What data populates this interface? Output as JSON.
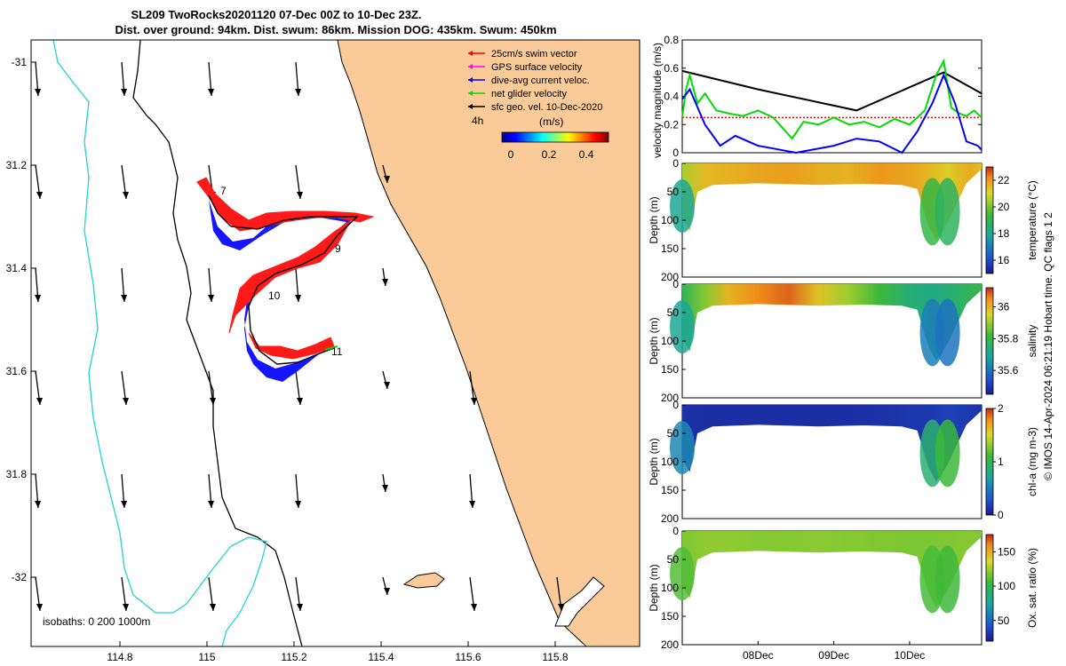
{
  "header": {
    "line1": "SL209 TwoRocks20201120 07-Dec 00Z to 10-Dec 23Z.",
    "line2": "Dist. over ground: 94km. Dist. swum: 86km. Mission DOG: 435km. Swum: 450km"
  },
  "map": {
    "x_ticks": [
      "114.8",
      "115",
      "115.2",
      "115.4",
      "115.6",
      "115.8"
    ],
    "y_ticks": [
      "-31",
      "31.2",
      "31.4",
      "31.6",
      "31.8",
      "-32"
    ],
    "isobath_label": "isobaths: 0   200  1000m",
    "day_labels": [
      "7",
      "9",
      "10",
      "11"
    ],
    "interval_label": "4h",
    "legend": [
      {
        "label": "25cm/s swim vector",
        "color": "#ff0000"
      },
      {
        "label": "GPS surface velocity",
        "color": "#ff00ff"
      },
      {
        "label": "dive-avg current veloc.",
        "color": "#0000ff"
      },
      {
        "label": "net glider velocity",
        "color": "#00dd00"
      },
      {
        "label": "sfc geo. vel. 10-Dec-2020",
        "color": "#000000"
      }
    ],
    "colorbar": {
      "title": "(m/s)",
      "ticks": [
        "0",
        "0.2",
        "0.4"
      ]
    }
  },
  "chart_data": [
    {
      "type": "line",
      "title": "",
      "ylabel": "velocity magnitude (m/s)",
      "ylim": [
        0,
        0.8
      ],
      "y_ticks": [
        "0.8",
        "0.6",
        "0.4",
        "0.2",
        "0"
      ],
      "x_day_range": [
        7.0,
        10.95
      ],
      "series": [
        {
          "name": "geostrophic",
          "color": "#000000",
          "x": [
            7.0,
            8.0,
            9.3,
            10.45,
            10.95
          ],
          "values": [
            0.58,
            0.45,
            0.3,
            0.57,
            0.42
          ]
        },
        {
          "name": "swim",
          "color": "#ff0000",
          "x": [
            7.0,
            10.95
          ],
          "values": [
            0.25,
            0.25
          ]
        },
        {
          "name": "net",
          "color": "#00dd00",
          "x": [
            7.0,
            7.05,
            7.1,
            7.2,
            7.3,
            7.45,
            7.6,
            7.8,
            8.0,
            8.2,
            8.45,
            8.6,
            8.8,
            9.0,
            9.2,
            9.4,
            9.6,
            9.8,
            10.0,
            10.2,
            10.35,
            10.45,
            10.55,
            10.65,
            10.75,
            10.85,
            10.95
          ],
          "values": [
            0.25,
            0.45,
            0.55,
            0.35,
            0.42,
            0.3,
            0.28,
            0.26,
            0.3,
            0.25,
            0.1,
            0.22,
            0.2,
            0.25,
            0.2,
            0.22,
            0.18,
            0.24,
            0.2,
            0.3,
            0.55,
            0.65,
            0.32,
            0.28,
            0.26,
            0.3,
            0.25
          ]
        },
        {
          "name": "dive-avg",
          "color": "#0000ff",
          "x": [
            7.0,
            7.1,
            7.3,
            7.5,
            7.7,
            8.0,
            8.2,
            8.5,
            9.0,
            9.3,
            9.6,
            9.9,
            10.1,
            10.3,
            10.45,
            10.6,
            10.75,
            10.9,
            10.95
          ],
          "values": [
            0.38,
            0.45,
            0.2,
            0.05,
            0.12,
            0.05,
            0.03,
            0.0,
            0.05,
            0.1,
            0.08,
            0.0,
            0.15,
            0.35,
            0.55,
            0.35,
            0.08,
            0.05,
            0.02
          ]
        }
      ]
    },
    {
      "type": "heatmap",
      "variable": "temperature",
      "ylabel": "Depth (m)",
      "clabel": "temperature (°C)",
      "ylim": [
        200,
        0
      ],
      "y_ticks": [
        "0",
        "50",
        "100",
        "150",
        "200"
      ],
      "cticks": [
        "22",
        "20",
        "18",
        "16"
      ],
      "crange": [
        15,
        23
      ],
      "bottom_x": [
        7.0,
        7.1,
        7.2,
        7.4,
        8.0,
        8.8,
        9.4,
        9.9,
        10.1,
        10.25,
        10.35,
        10.5,
        10.75,
        10.95
      ],
      "bottom_y": [
        95,
        118,
        50,
        38,
        35,
        38,
        36,
        38,
        45,
        110,
        135,
        105,
        35,
        10
      ],
      "profile_x": [
        7.0,
        7.3,
        7.6,
        8.0,
        8.4,
        8.8,
        9.2,
        9.6,
        10.0,
        10.3,
        10.5,
        10.8,
        10.95
      ],
      "surface_values": [
        20.5,
        21.5,
        21.6,
        21.8,
        21.9,
        21.7,
        21.6,
        22.0,
        21.8,
        21.5,
        21.2,
        21.7,
        21.4
      ],
      "deep_values": [
        18.0,
        20.5,
        20.8,
        21.0,
        21.2,
        21.0,
        21.0,
        21.3,
        20.8,
        19.2,
        18.8,
        20.8,
        20.4
      ]
    },
    {
      "type": "heatmap",
      "variable": "salinity",
      "ylabel": "Depth (m)",
      "clabel": "salinity",
      "ylim": [
        200,
        0
      ],
      "y_ticks": [
        "0",
        "50",
        "100",
        "150",
        "200"
      ],
      "cticks": [
        "36",
        "35.8",
        "35.6"
      ],
      "crange": [
        35.45,
        36.12
      ],
      "bottom_x": [
        7.0,
        7.1,
        7.2,
        7.4,
        8.0,
        8.8,
        9.4,
        9.9,
        10.1,
        10.25,
        10.35,
        10.5,
        10.75,
        10.95
      ],
      "bottom_y": [
        95,
        118,
        50,
        38,
        35,
        38,
        36,
        38,
        45,
        110,
        135,
        105,
        35,
        10
      ],
      "profile_x": [
        7.0,
        7.3,
        7.6,
        8.0,
        8.4,
        8.8,
        9.2,
        9.6,
        10.0,
        10.3,
        10.5,
        10.8,
        10.95
      ],
      "surface_values": [
        35.78,
        35.88,
        36.0,
        36.05,
        36.08,
        35.98,
        35.9,
        35.82,
        35.74,
        35.72,
        35.74,
        35.78,
        35.8
      ],
      "deep_values": [
        35.7,
        35.75,
        35.78,
        35.8,
        35.8,
        35.78,
        35.76,
        35.75,
        35.72,
        35.62,
        35.6,
        35.7,
        35.72
      ]
    },
    {
      "type": "heatmap",
      "variable": "chl-a",
      "ylabel": "Depth (m)",
      "clabel": "chl-a (mg m-3)",
      "ylim": [
        200,
        0
      ],
      "y_ticks": [
        "0",
        "50",
        "100",
        "150",
        "200"
      ],
      "cticks": [
        "2",
        "1",
        "0"
      ],
      "crange": [
        0,
        2
      ],
      "bottom_x": [
        7.0,
        7.1,
        7.2,
        7.4,
        8.0,
        8.8,
        9.4,
        9.9,
        10.1,
        10.25,
        10.35,
        10.5,
        10.75,
        10.95
      ],
      "bottom_y": [
        95,
        118,
        50,
        38,
        35,
        38,
        36,
        38,
        45,
        110,
        135,
        105,
        35,
        10
      ],
      "profile_x": [
        7.0,
        7.3,
        7.6,
        8.0,
        8.4,
        8.8,
        9.2,
        9.6,
        10.0,
        10.3,
        10.5,
        10.8,
        10.95
      ],
      "surface_values": [
        0.12,
        0.1,
        0.1,
        0.1,
        0.1,
        0.1,
        0.1,
        0.12,
        0.14,
        0.16,
        0.2,
        0.16,
        0.12
      ],
      "deep_values": [
        0.55,
        0.35,
        0.3,
        0.3,
        0.3,
        0.3,
        0.3,
        0.3,
        0.45,
        0.9,
        1.1,
        0.7,
        0.5
      ]
    },
    {
      "type": "heatmap",
      "variable": "oxygen saturation",
      "ylabel": "Depth (m)",
      "clabel": "Ox. sat. ratio (%)",
      "ylim": [
        200,
        0
      ],
      "y_ticks": [
        "0",
        "50",
        "100",
        "150",
        "200"
      ],
      "cticks": [
        "150",
        "100",
        "50"
      ],
      "crange": [
        20,
        175
      ],
      "bottom_x": [
        7.0,
        7.1,
        7.2,
        7.4,
        8.0,
        8.8,
        9.4,
        9.9,
        10.1,
        10.25,
        10.35,
        10.5,
        10.75,
        10.95
      ],
      "bottom_y": [
        95,
        118,
        50,
        38,
        35,
        38,
        36,
        38,
        45,
        110,
        135,
        105,
        35,
        10
      ],
      "profile_x": [
        7.0,
        7.3,
        7.6,
        8.0,
        8.4,
        8.8,
        9.2,
        9.6,
        10.0,
        10.3,
        10.5,
        10.8,
        10.95
      ],
      "surface_values": [
        118,
        122,
        122,
        120,
        120,
        121,
        120,
        119,
        118,
        118,
        119,
        120,
        119
      ],
      "deep_values": [
        110,
        114,
        115,
        114,
        114,
        115,
        114,
        113,
        112,
        108,
        106,
        112,
        113
      ]
    }
  ],
  "time_axis": {
    "labels": [
      "08Dec",
      "09Dec",
      "10Dec"
    ],
    "positions_day": [
      8.0,
      9.0,
      10.0
    ]
  },
  "credit": "© IMOS 14-Apr-2024 06:21:19 Hobart time. QC flags 1  2"
}
